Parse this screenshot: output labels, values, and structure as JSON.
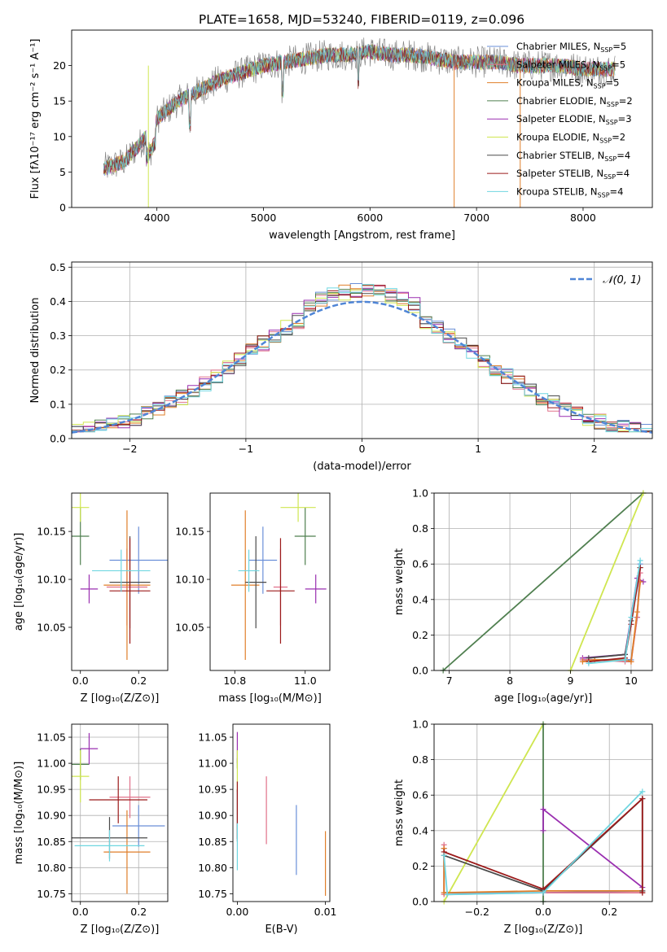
{
  "figure": {
    "title": "PLATE=1658, MJD=53240, FIBERID=0119, z=0.096"
  },
  "colors": {
    "Chabrier MILES": "#6a8fd8",
    "Salpeter MILES": "#e0708a",
    "Kroupa MILES": "#e07f2a",
    "Chabrier ELODIE": "#4f7f4f",
    "Salpeter ELODIE": "#9a2fb0",
    "Kroupa ELODIE": "#cfe650",
    "Chabrier STELIB": "#4a4a4a",
    "Salpeter STELIB": "#9b1a1a",
    "Kroupa STELIB": "#6fd6e0",
    "spectrum_gray": "#808080",
    "normal_curve": "#4f85d6"
  },
  "chart_data": [
    {
      "id": "spectrum",
      "type": "line",
      "xlabel": "wavelength [Angstrom, rest frame]",
      "ylabel": "Flux [fλ10⁻¹⁷ erg cm⁻² s⁻¹ A⁻¹]",
      "xlim": [
        3200,
        8650
      ],
      "ylim": [
        0,
        25
      ],
      "xticks": [
        4000,
        5000,
        6000,
        7000,
        8000
      ],
      "yticks": [
        0,
        5,
        10,
        15,
        20
      ],
      "legend_position": "right",
      "legend": [
        "Chabrier MILES, N_SSP=5",
        "Salpeter MILES, N_SSP=5",
        "Kroupa MILES, N_SSP=5",
        "Chabrier ELODIE, N_SSP=2",
        "Salpeter ELODIE, N_SSP=3",
        "Kroupa ELODIE, N_SSP=2",
        "Chabrier STELIB, N_SSP=4",
        "Salpeter STELIB, N_SSP=4",
        "Kroupa STELIB, N_SSP=4"
      ],
      "continuum": {
        "x": [
          3500,
          3700,
          3900,
          4000,
          4200,
          4400,
          4600,
          4800,
          5000,
          5200,
          5400,
          5600,
          5800,
          6000,
          6200,
          6400,
          6600,
          6800,
          7000,
          7200,
          7400,
          7600,
          7800,
          8000,
          8200,
          8300
        ],
        "y": [
          5.5,
          6.5,
          10,
          12.5,
          15,
          16.5,
          18,
          19,
          20,
          20.5,
          21,
          21.5,
          21.5,
          22,
          21.5,
          21.5,
          21,
          20.5,
          20.5,
          20.5,
          20,
          20,
          20,
          19.5,
          19.5,
          19.5
        ]
      },
      "spikes": [
        {
          "x": 6790,
          "y": 0,
          "color_key": "Kroupa MILES"
        },
        {
          "x": 7410,
          "y": 0,
          "color_key": "Kroupa MILES"
        },
        {
          "x": 3920,
          "y": 0,
          "color_key": "Kroupa ELODIE"
        }
      ]
    },
    {
      "id": "residual-hist",
      "type": "area",
      "xlabel": "(data-model)/error",
      "ylabel": "Normed distribution",
      "xlim": [
        -2.5,
        2.5
      ],
      "ylim": [
        0,
        0.515
      ],
      "xticks": [
        -2,
        -1,
        0,
        1,
        2
      ],
      "yticks": [
        0.0,
        0.1,
        0.2,
        0.3,
        0.4,
        0.5
      ],
      "grid": true,
      "bin_width": 0.1,
      "legend_position": "top-right",
      "normal_label": "𝒩(0, 1)",
      "normal": {
        "mean": 0,
        "sigma": 1
      }
    },
    {
      "id": "age-vs-Z",
      "type": "scatter",
      "xlabel": "Z [log₁₀(Z/Z⊙)]",
      "ylabel": "age  [log₁₀(age/yr)]",
      "xlim": [
        -0.03,
        0.3
      ],
      "ylim": [
        10.005,
        10.19
      ],
      "xticks": [
        0.0,
        0.2
      ],
      "yticks": [
        10.05,
        10.1,
        10.15
      ],
      "points": [
        {
          "series": "Chabrier MILES",
          "x": 0.2,
          "y": 10.12,
          "xerr": 0.1,
          "yerr": 0.035
        },
        {
          "series": "Salpeter MILES",
          "x": 0.16,
          "y": 10.092,
          "xerr": 0.07,
          "yerr": 0.04
        },
        {
          "series": "Kroupa MILES",
          "x": 0.16,
          "y": 10.094,
          "xerr": 0.08,
          "yerr": 0.078
        },
        {
          "series": "Chabrier ELODIE",
          "x": 0.0,
          "y": 10.145,
          "xerr": 0.03,
          "yerr": 0.03
        },
        {
          "series": "Salpeter ELODIE",
          "x": 0.03,
          "y": 10.09,
          "xerr": 0.03,
          "yerr": 0.015
        },
        {
          "series": "Kroupa ELODIE",
          "x": 0.0,
          "y": 10.175,
          "xerr": 0.03,
          "yerr": 0.015
        },
        {
          "series": "Chabrier STELIB",
          "x": 0.17,
          "y": 10.097,
          "xerr": 0.07,
          "yerr": 0.048
        },
        {
          "series": "Salpeter STELIB",
          "x": 0.17,
          "y": 10.088,
          "xerr": 0.07,
          "yerr": 0.055
        },
        {
          "series": "Kroupa STELIB",
          "x": 0.14,
          "y": 10.109,
          "xerr": 0.1,
          "yerr": 0.022
        }
      ]
    },
    {
      "id": "age-vs-mass",
      "type": "scatter",
      "xlabel": "mass [log₁₀(M/M⊙)]",
      "ylabel": "",
      "xlim": [
        10.73,
        11.07
      ],
      "ylim": [
        10.005,
        10.19
      ],
      "xticks": [
        10.8,
        11.0
      ],
      "yticks": [
        10.05,
        10.1,
        10.15
      ],
      "points": [
        {
          "series": "Chabrier MILES",
          "x": 10.88,
          "y": 10.12,
          "xerr": 0.04,
          "yerr": 0.035
        },
        {
          "series": "Salpeter MILES",
          "x": 10.93,
          "y": 10.092,
          "xerr": 0.02,
          "yerr": 0.04
        },
        {
          "series": "Kroupa MILES",
          "x": 10.83,
          "y": 10.094,
          "xerr": 0.04,
          "yerr": 0.078
        },
        {
          "series": "Chabrier ELODIE",
          "x": 11.0,
          "y": 10.145,
          "xerr": 0.03,
          "yerr": 0.03
        },
        {
          "series": "Salpeter ELODIE",
          "x": 11.03,
          "y": 10.09,
          "xerr": 0.03,
          "yerr": 0.015
        },
        {
          "series": "Kroupa ELODIE",
          "x": 10.98,
          "y": 10.175,
          "xerr": 0.05,
          "yerr": 0.015
        },
        {
          "series": "Chabrier STELIB",
          "x": 10.86,
          "y": 10.097,
          "xerr": 0.03,
          "yerr": 0.048
        },
        {
          "series": "Salpeter STELIB",
          "x": 10.93,
          "y": 10.088,
          "xerr": 0.04,
          "yerr": 0.055
        },
        {
          "series": "Kroupa STELIB",
          "x": 10.84,
          "y": 10.109,
          "xerr": 0.03,
          "yerr": 0.022
        }
      ]
    },
    {
      "id": "weight-vs-age",
      "type": "line",
      "xlabel": "age  [log₁₀(age/yr)]",
      "ylabel": "mass weight",
      "xlim": [
        6.75,
        10.35
      ],
      "ylim": [
        0,
        1.0
      ],
      "xticks": [
        7,
        8,
        9,
        10
      ],
      "yticks": [
        0.0,
        0.2,
        0.4,
        0.6,
        0.8,
        1.0
      ],
      "grid": true,
      "series": [
        {
          "name": "Chabrier ELODIE",
          "x": [
            6.9,
            10.2
          ],
          "y": [
            0.0,
            1.0
          ]
        },
        {
          "name": "Kroupa ELODIE",
          "x": [
            9.0,
            10.2
          ],
          "y": [
            0.0,
            1.0
          ]
        },
        {
          "name": "Salpeter ELODIE",
          "x": [
            9.2,
            9.9,
            10.1,
            10.2
          ],
          "y": [
            0.07,
            0.09,
            0.52,
            0.5
          ]
        },
        {
          "name": "Chabrier MILES",
          "x": [
            9.2,
            9.4,
            9.9,
            10.0,
            10.1,
            10.15
          ],
          "y": [
            0.06,
            0.06,
            0.06,
            0.06,
            0.3,
            0.6
          ]
        },
        {
          "name": "Salpeter MILES",
          "x": [
            9.2,
            9.4,
            9.9,
            10.0,
            10.1,
            10.15
          ],
          "y": [
            0.06,
            0.06,
            0.05,
            0.05,
            0.3,
            0.55
          ]
        },
        {
          "name": "Kroupa MILES",
          "x": [
            9.2,
            9.4,
            9.9,
            10.0,
            10.1,
            10.15
          ],
          "y": [
            0.05,
            0.06,
            0.06,
            0.05,
            0.33,
            0.5
          ]
        },
        {
          "name": "Chabrier STELIB",
          "x": [
            9.3,
            9.9,
            10.0,
            10.15
          ],
          "y": [
            0.07,
            0.09,
            0.28,
            0.58
          ]
        },
        {
          "name": "Salpeter STELIB",
          "x": [
            9.3,
            9.9,
            10.0,
            10.15
          ],
          "y": [
            0.05,
            0.07,
            0.26,
            0.58
          ]
        },
        {
          "name": "Kroupa STELIB",
          "x": [
            9.3,
            9.9,
            10.0,
            10.15
          ],
          "y": [
            0.04,
            0.06,
            0.3,
            0.62
          ]
        }
      ]
    },
    {
      "id": "mass-vs-Z",
      "type": "scatter",
      "xlabel": "Z [log₁₀(Z/Z⊙)]",
      "ylabel": "mass [log₁₀(M/M⊙)]",
      "xlim": [
        -0.03,
        0.3
      ],
      "ylim": [
        10.735,
        11.075
      ],
      "xticks": [
        0.0,
        0.2
      ],
      "yticks": [
        10.75,
        10.8,
        10.85,
        10.9,
        10.95,
        11.0,
        11.05
      ],
      "grid": true,
      "points": [
        {
          "series": "Chabrier MILES",
          "x": 0.2,
          "y": 10.88,
          "xerr": 0.09,
          "yerr": 0.04
        },
        {
          "series": "Salpeter MILES",
          "x": 0.17,
          "y": 10.935,
          "xerr": 0.07,
          "yerr": 0.04
        },
        {
          "series": "Kroupa MILES",
          "x": 0.16,
          "y": 10.83,
          "xerr": 0.08,
          "yerr": 0.08
        },
        {
          "series": "Chabrier ELODIE",
          "x": 0.0,
          "y": 10.998,
          "xerr": 0.03,
          "yerr": 0.03
        },
        {
          "series": "Salpeter ELODIE",
          "x": 0.03,
          "y": 11.028,
          "xerr": 0.03,
          "yerr": 0.03
        },
        {
          "series": "Kroupa ELODIE",
          "x": 0.0,
          "y": 10.975,
          "xerr": 0.03,
          "yerr": 0.05
        },
        {
          "series": "Chabrier STELIB",
          "x": 0.1,
          "y": 10.857,
          "xerr": 0.13,
          "yerr": 0.04
        },
        {
          "series": "Salpeter STELIB",
          "x": 0.13,
          "y": 10.93,
          "xerr": 0.1,
          "yerr": 0.045
        },
        {
          "series": "Kroupa STELIB",
          "x": 0.1,
          "y": 10.842,
          "xerr": 0.12,
          "yerr": 0.03
        }
      ]
    },
    {
      "id": "mass-vs-EBV",
      "type": "scatter",
      "xlabel": "E(B-V)",
      "ylabel": "",
      "xlim": [
        -0.0005,
        0.0105
      ],
      "ylim": [
        10.735,
        11.075
      ],
      "xticks": [
        0.0,
        0.01
      ],
      "yticks": [
        10.75,
        10.8,
        10.85,
        10.9,
        10.95,
        11.0,
        11.05
      ],
      "points": [
        {
          "series": "Chabrier MILES",
          "x": 0.0067,
          "y": 10.853,
          "yerr": 0.067
        },
        {
          "series": "Salpeter MILES",
          "x": 0.0033,
          "y": 10.91,
          "yerr": 0.065
        },
        {
          "series": "Kroupa MILES",
          "x": 0.01,
          "y": 10.808,
          "yerr": 0.062
        },
        {
          "series": "Chabrier ELODIE",
          "x": 0.0,
          "y": 11.0,
          "yerr": 0.01
        },
        {
          "series": "Salpeter ELODIE",
          "x": 0.0,
          "y": 11.03,
          "yerr": 0.03
        },
        {
          "series": "Kroupa ELODIE",
          "x": 0.0,
          "y": 10.985,
          "yerr": 0.04
        },
        {
          "series": "Chabrier STELIB",
          "x": 0.0,
          "y": 10.9,
          "yerr": 0.05
        },
        {
          "series": "Salpeter STELIB",
          "x": 0.0,
          "y": 10.91,
          "yerr": 0.055
        },
        {
          "series": "Kroupa STELIB",
          "x": 0.0,
          "y": 10.84,
          "yerr": 0.045
        }
      ]
    },
    {
      "id": "weight-vs-Z",
      "type": "line",
      "xlabel": "Z [log₁₀(Z/Z⊙)]",
      "ylabel": "mass weight",
      "xlim": [
        -0.33,
        0.33
      ],
      "ylim": [
        0,
        1.0
      ],
      "xticks": [
        -0.2,
        0.0,
        0.2
      ],
      "yticks": [
        0.0,
        0.2,
        0.4,
        0.6,
        0.8,
        1.0
      ],
      "grid": true,
      "series": [
        {
          "name": "Kroupa ELODIE",
          "x": [
            -0.3,
            0.0
          ],
          "y": [
            0.0,
            1.0
          ]
        },
        {
          "name": "Chabrier ELODIE",
          "x": [
            0.0,
            0.0
          ],
          "y": [
            0.0,
            1.0
          ]
        },
        {
          "name": "Salpeter ELODIE",
          "x": [
            0.0,
            0.0,
            0.3
          ],
          "y": [
            0.4,
            0.52,
            0.08
          ]
        },
        {
          "name": "Chabrier MILES",
          "x": [
            -0.3,
            -0.3,
            0.0,
            0.3
          ],
          "y": [
            0.3,
            0.05,
            0.05,
            0.06
          ]
        },
        {
          "name": "Salpeter MILES",
          "x": [
            -0.3,
            -0.3,
            0.0,
            0.3
          ],
          "y": [
            0.32,
            0.04,
            0.05,
            0.05
          ]
        },
        {
          "name": "Kroupa MILES",
          "x": [
            -0.3,
            -0.3,
            0.0,
            0.3
          ],
          "y": [
            0.3,
            0.05,
            0.06,
            0.06
          ]
        },
        {
          "name": "Chabrier STELIB",
          "x": [
            -0.3,
            0.0,
            0.3,
            0.3
          ],
          "y": [
            0.26,
            0.06,
            0.58,
            0.06
          ]
        },
        {
          "name": "Salpeter STELIB",
          "x": [
            -0.3,
            0.0,
            0.3,
            0.3
          ],
          "y": [
            0.28,
            0.07,
            0.58,
            0.05
          ]
        },
        {
          "name": "Kroupa STELIB",
          "x": [
            -0.3,
            -0.29,
            0.0,
            0.3
          ],
          "y": [
            0.26,
            0.04,
            0.05,
            0.62
          ]
        }
      ]
    }
  ]
}
